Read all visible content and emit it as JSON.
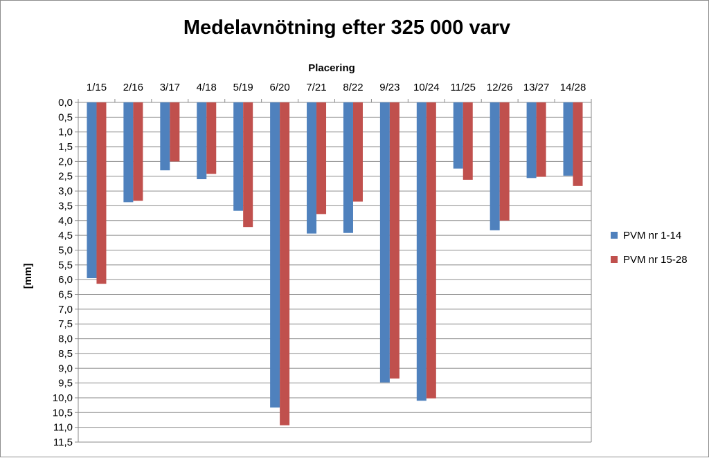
{
  "chart_data": {
    "type": "bar",
    "title": "Medelavnötning efter 325 000 varv",
    "xlabel": "Placering",
    "ylabel": "[mm]",
    "x_axis_position": "top",
    "y_axis_inverted": true,
    "ylim": [
      0,
      11.5
    ],
    "ytick_step": 0.5,
    "ytick_labels": [
      "0,0",
      "0,5",
      "1,0",
      "1,5",
      "2,0",
      "2,5",
      "3,0",
      "3,5",
      "4,0",
      "4,5",
      "5,0",
      "5,5",
      "6,0",
      "6,5",
      "7,0",
      "7,5",
      "8,0",
      "8,5",
      "9,0",
      "9,5",
      "10,0",
      "10,5",
      "11,0",
      "11,5"
    ],
    "grid": true,
    "legend_position": "right",
    "categories": [
      "1/15",
      "2/16",
      "3/17",
      "4/18",
      "5/19",
      "6/20",
      "7/21",
      "8/22",
      "9/23",
      "10/24",
      "11/25",
      "12/26",
      "13/27",
      "14/28"
    ],
    "series": [
      {
        "name": "PVM nr 1-14",
        "color": "#4f81bd",
        "values": [
          5.95,
          3.38,
          2.3,
          2.6,
          3.67,
          10.33,
          4.44,
          4.42,
          9.48,
          10.1,
          2.24,
          4.33,
          2.56,
          2.48
        ]
      },
      {
        "name": "PVM nr 15-28",
        "color": "#c0504d",
        "values": [
          6.14,
          3.33,
          2.0,
          2.42,
          4.22,
          10.93,
          3.78,
          3.36,
          9.35,
          10.02,
          2.62,
          4.0,
          2.52,
          2.83
        ]
      }
    ]
  }
}
